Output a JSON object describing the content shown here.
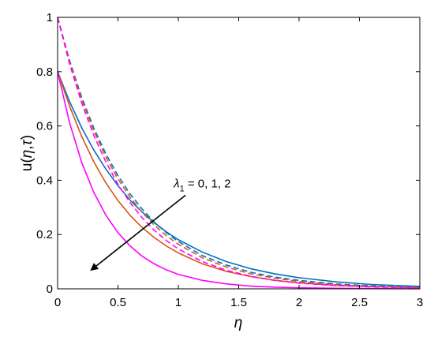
{
  "chart_data": {
    "type": "line",
    "title": "",
    "xlabel": "η",
    "ylabel_parts": [
      "u(",
      "η",
      ",",
      "τ",
      ")"
    ],
    "xlim": [
      0,
      3
    ],
    "ylim": [
      0,
      1
    ],
    "xticks": [
      0,
      0.5,
      1,
      1.5,
      2,
      2.5,
      3
    ],
    "xtick_labels": [
      "0",
      "0.5",
      "1",
      "1.5",
      "2",
      "2.5",
      "3"
    ],
    "yticks": [
      0,
      0.2,
      0.4,
      0.6,
      0.8,
      1
    ],
    "ytick_labels": [
      "0",
      "0.2",
      "0.4",
      "0.6",
      "0.8",
      "1"
    ],
    "grid": false,
    "legend": "none",
    "annotation": {
      "lambda": "λ",
      "subscript": "1",
      "text": " = 0, 1, 2",
      "arrow_from": [
        1.06,
        0.345
      ],
      "arrow_to": [
        0.28,
        0.07
      ]
    },
    "series": [
      {
        "color": "#0072BD",
        "dash": "solid",
        "x": [
          0,
          0.1,
          0.2,
          0.3,
          0.4,
          0.5,
          0.6,
          0.7,
          0.8,
          0.9,
          1.0,
          1.2,
          1.4,
          1.6,
          1.8,
          2.0,
          2.3,
          2.6,
          3.0
        ],
        "y": [
          0.8,
          0.689,
          0.593,
          0.511,
          0.441,
          0.38,
          0.327,
          0.283,
          0.244,
          0.21,
          0.181,
          0.135,
          0.1,
          0.074,
          0.055,
          0.041,
          0.026,
          0.016,
          0.009
        ]
      },
      {
        "color": "#D95319",
        "dash": "solid",
        "x": [
          0,
          0.1,
          0.2,
          0.3,
          0.4,
          0.5,
          0.6,
          0.7,
          0.8,
          0.9,
          1.0,
          1.2,
          1.4,
          1.6,
          1.8,
          2.0,
          2.3,
          2.6,
          3.0
        ],
        "y": [
          0.8,
          0.672,
          0.561,
          0.468,
          0.39,
          0.325,
          0.271,
          0.226,
          0.189,
          0.158,
          0.132,
          0.092,
          0.064,
          0.045,
          0.031,
          0.022,
          0.013,
          0.008,
          0.004
        ]
      },
      {
        "color": "#FF00FF",
        "dash": "solid",
        "x": [
          0,
          0.1,
          0.2,
          0.3,
          0.4,
          0.5,
          0.6,
          0.7,
          0.8,
          0.9,
          1.0,
          1.2,
          1.4,
          1.6,
          1.8,
          2.0,
          2.3,
          2.6,
          3.0
        ],
        "y": [
          0.8,
          0.61,
          0.465,
          0.355,
          0.271,
          0.207,
          0.158,
          0.12,
          0.092,
          0.07,
          0.053,
          0.031,
          0.018,
          0.01,
          0.006,
          0.004,
          0.002,
          0.001,
          0.0
        ]
      },
      {
        "color": "#0072BD",
        "dash": "dashed",
        "x": [
          0,
          0.1,
          0.2,
          0.3,
          0.4,
          0.5,
          0.6,
          0.7,
          0.8,
          0.9,
          1.0,
          1.2,
          1.4,
          1.6,
          1.8,
          2.0,
          2.3,
          2.6,
          3.0
        ],
        "y": [
          1.0,
          0.84,
          0.705,
          0.592,
          0.497,
          0.417,
          0.35,
          0.294,
          0.246,
          0.207,
          0.174,
          0.122,
          0.087,
          0.061,
          0.043,
          0.031,
          0.018,
          0.011,
          0.005
        ]
      },
      {
        "color": "#D95319",
        "dash": "dashed",
        "x": [
          0,
          0.1,
          0.2,
          0.3,
          0.4,
          0.5,
          0.6,
          0.7,
          0.8,
          0.9,
          1.0,
          1.2,
          1.4,
          1.6,
          1.8,
          2.0,
          2.3,
          2.6,
          3.0
        ],
        "y": [
          1.0,
          0.835,
          0.697,
          0.582,
          0.485,
          0.405,
          0.338,
          0.282,
          0.235,
          0.196,
          0.164,
          0.114,
          0.08,
          0.055,
          0.039,
          0.027,
          0.015,
          0.009,
          0.004
        ]
      },
      {
        "color": "#FF00FF",
        "dash": "dashed",
        "x": [
          0,
          0.1,
          0.2,
          0.3,
          0.4,
          0.5,
          0.6,
          0.7,
          0.8,
          0.9,
          1.0,
          1.2,
          1.4,
          1.6,
          1.8,
          2.0,
          2.3,
          2.6,
          3.0
        ],
        "y": [
          1.0,
          0.827,
          0.684,
          0.565,
          0.467,
          0.385,
          0.318,
          0.262,
          0.216,
          0.178,
          0.147,
          0.1,
          0.068,
          0.046,
          0.031,
          0.021,
          0.012,
          0.007,
          0.003
        ]
      }
    ]
  }
}
